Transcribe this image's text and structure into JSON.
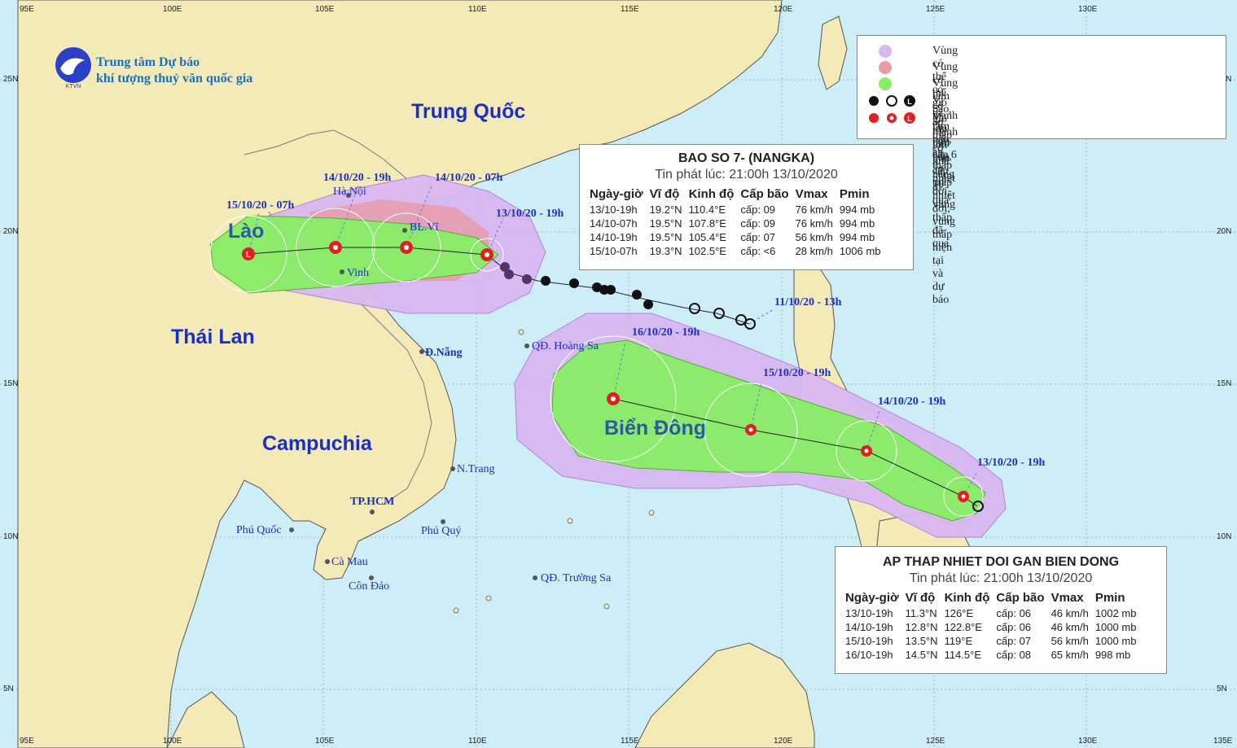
{
  "header": {
    "org_line1": "Trung tâm Dự báo",
    "org_line2": "khí tượng thuỷ văn quốc gia",
    "logo_text": "KTVN"
  },
  "axes": {
    "lon_labels": [
      "100E",
      "105E",
      "110E",
      "115E",
      "120E",
      "125E",
      "130E"
    ],
    "lat_labels": [
      "25N",
      "20N",
      "15N",
      "10N",
      "5N"
    ],
    "corner_labels": [
      "95E",
      "135E"
    ]
  },
  "countries": {
    "china": "Trung Quốc",
    "laos": "Lào",
    "thailand": "Thái Lan",
    "cambodia": "Campuchia",
    "south_china_sea": "Biển Đông"
  },
  "places": {
    "hanoi": "Hà Nội",
    "bach_long_vi": "BL.Vĩ",
    "vinh": "Vinh",
    "da_nang": "Đ.Nẵng",
    "hoang_sa": "QĐ. Hoàng Sa",
    "nha_trang": "N.Trang",
    "tp_hcm": "TP.HCM",
    "phu_quoc": "Phú Quốc",
    "phu_quy": "Phú Quý",
    "ca_mau": "Cà Mau",
    "con_dao": "Côn Đảo",
    "truong_sa": "QĐ. Trường Sa"
  },
  "track_labels": {
    "nangka_1": "15/10/20 - 07h",
    "nangka_2": "14/10/20 - 19h",
    "nangka_3": "14/10/20 - 07h",
    "nangka_4": "13/10/20 - 19h",
    "nangka_past": "11/10/20 - 13h",
    "atnd_1": "16/10/20 - 19h",
    "atnd_2": "15/10/20 - 19h",
    "atnd_3": "14/10/20 - 19h",
    "atnd_4": "13/10/20 - 19h"
  },
  "legend": {
    "items": [
      {
        "text": "Vùng có thể có gió mạnh lớn hơn cấp 6",
        "color": "#d9b8f2"
      },
      {
        "text": "Vùng có thể có gió mạnh lớn hơn cấp 10",
        "color": "#e89aa8"
      },
      {
        "text": "Vùng tâm bão, áp thấp có khả năng đi qua",
        "color": "#88ee66"
      },
      {
        "text": "Vị trí tâm bão, áp thấp nhiệt đới, vùng thấp đã qua",
        "color": "#111111"
      },
      {
        "text": "Vị trí tâm bão, áp thấp nhiệt đới, vùng thấp hiện tại và dự báo",
        "color": "#e02020"
      }
    ]
  },
  "nangka_box": {
    "title": "BAO SO 7- (NANGKA)",
    "issued": "Tin phát lúc: 21:00h 13/10/2020",
    "columns": [
      "Ngày-giờ",
      "Vĩ độ",
      "Kinh độ",
      "Cấp bão",
      "Vmax",
      "Pmin"
    ],
    "rows": [
      [
        "13/10-19h",
        "19.2°N",
        "110.4°E",
        "cấp: 09",
        "76 km/h",
        "994 mb"
      ],
      [
        "14/10-07h",
        "19.5°N",
        "107.8°E",
        "cấp: 09",
        "76 km/h",
        "994 mb"
      ],
      [
        "14/10-19h",
        "19.5°N",
        "105.4°E",
        "cấp: 07",
        "56 km/h",
        "994 mb"
      ],
      [
        "15/10-07h",
        "19.3°N",
        "102.5°E",
        "cấp: <6",
        "28 km/h",
        "1006 mb"
      ]
    ]
  },
  "atnd_box": {
    "title": "AP THAP NHIET DOI GAN BIEN DONG",
    "issued": "Tin phát lúc: 21:00h 13/10/2020",
    "columns": [
      "Ngày-giờ",
      "Vĩ độ",
      "Kinh độ",
      "Cấp bão",
      "Vmax",
      "Pmin"
    ],
    "rows": [
      [
        "13/10-19h",
        "11.3°N",
        "126°E",
        "cấp: 06",
        "46 km/h",
        "1002 mb"
      ],
      [
        "14/10-19h",
        "12.8°N",
        "122.8°E",
        "cấp: 06",
        "46 km/h",
        "1000 mb"
      ],
      [
        "15/10-19h",
        "13.5°N",
        "119°E",
        "cấp: 07",
        "56 km/h",
        "1000 mb"
      ],
      [
        "16/10-19h",
        "14.5°N",
        "114.5°E",
        "cấp: 08",
        "65 km/h",
        "998 mb"
      ]
    ]
  },
  "colors": {
    "sea": "#cdeef7",
    "land": "#f3eab8",
    "zone_cap6": "#d9b8f2",
    "zone_cap10": "#e89aa8",
    "zone_center": "#88ee66",
    "current": "#e02020",
    "past": "#111111",
    "label_blue": "#1a2fc4"
  }
}
